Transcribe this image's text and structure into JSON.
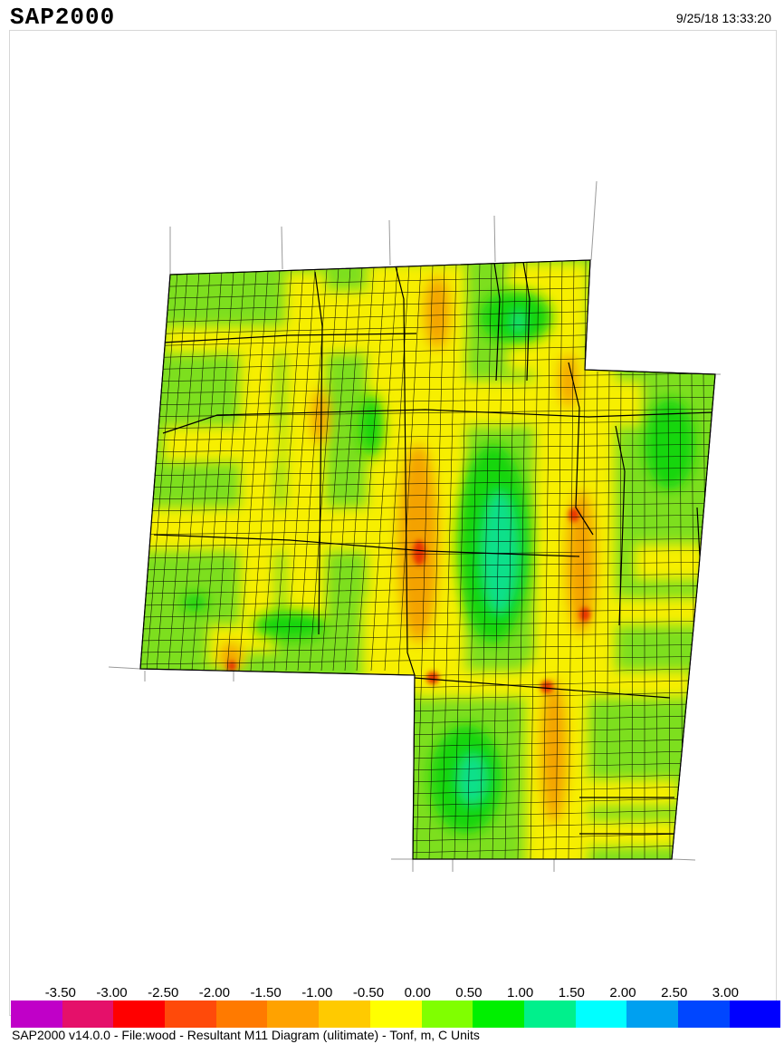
{
  "header": {
    "app_title": "SAP2000",
    "timestamp": "9/25/18 13:33:20"
  },
  "legend": {
    "ticks": [
      "-3.50",
      "-3.00",
      "-2.50",
      "-2.00",
      "-1.50",
      "-1.00",
      "-0.50",
      "0.00",
      "0.50",
      "1.00",
      "1.50",
      "2.00",
      "2.50",
      "3.00"
    ],
    "colors": [
      "#c000c8",
      "#e5106a",
      "#ff0000",
      "#ff4a0a",
      "#ff7a00",
      "#ffa200",
      "#ffca00",
      "#ffff00",
      "#80ff00",
      "#00f000",
      "#00f08c",
      "#00ffff",
      "#00a0f0",
      "#0046ff",
      "#0000ff"
    ]
  },
  "contour": {
    "background_color": "#7ddf1e",
    "grid_color": "#000000"
  },
  "status_bar": {
    "text": "SAP2000 v14.0.0 - File:wood -   Resultant M11 Diagram   (ulitimate) - Tonf, m, C Units"
  }
}
